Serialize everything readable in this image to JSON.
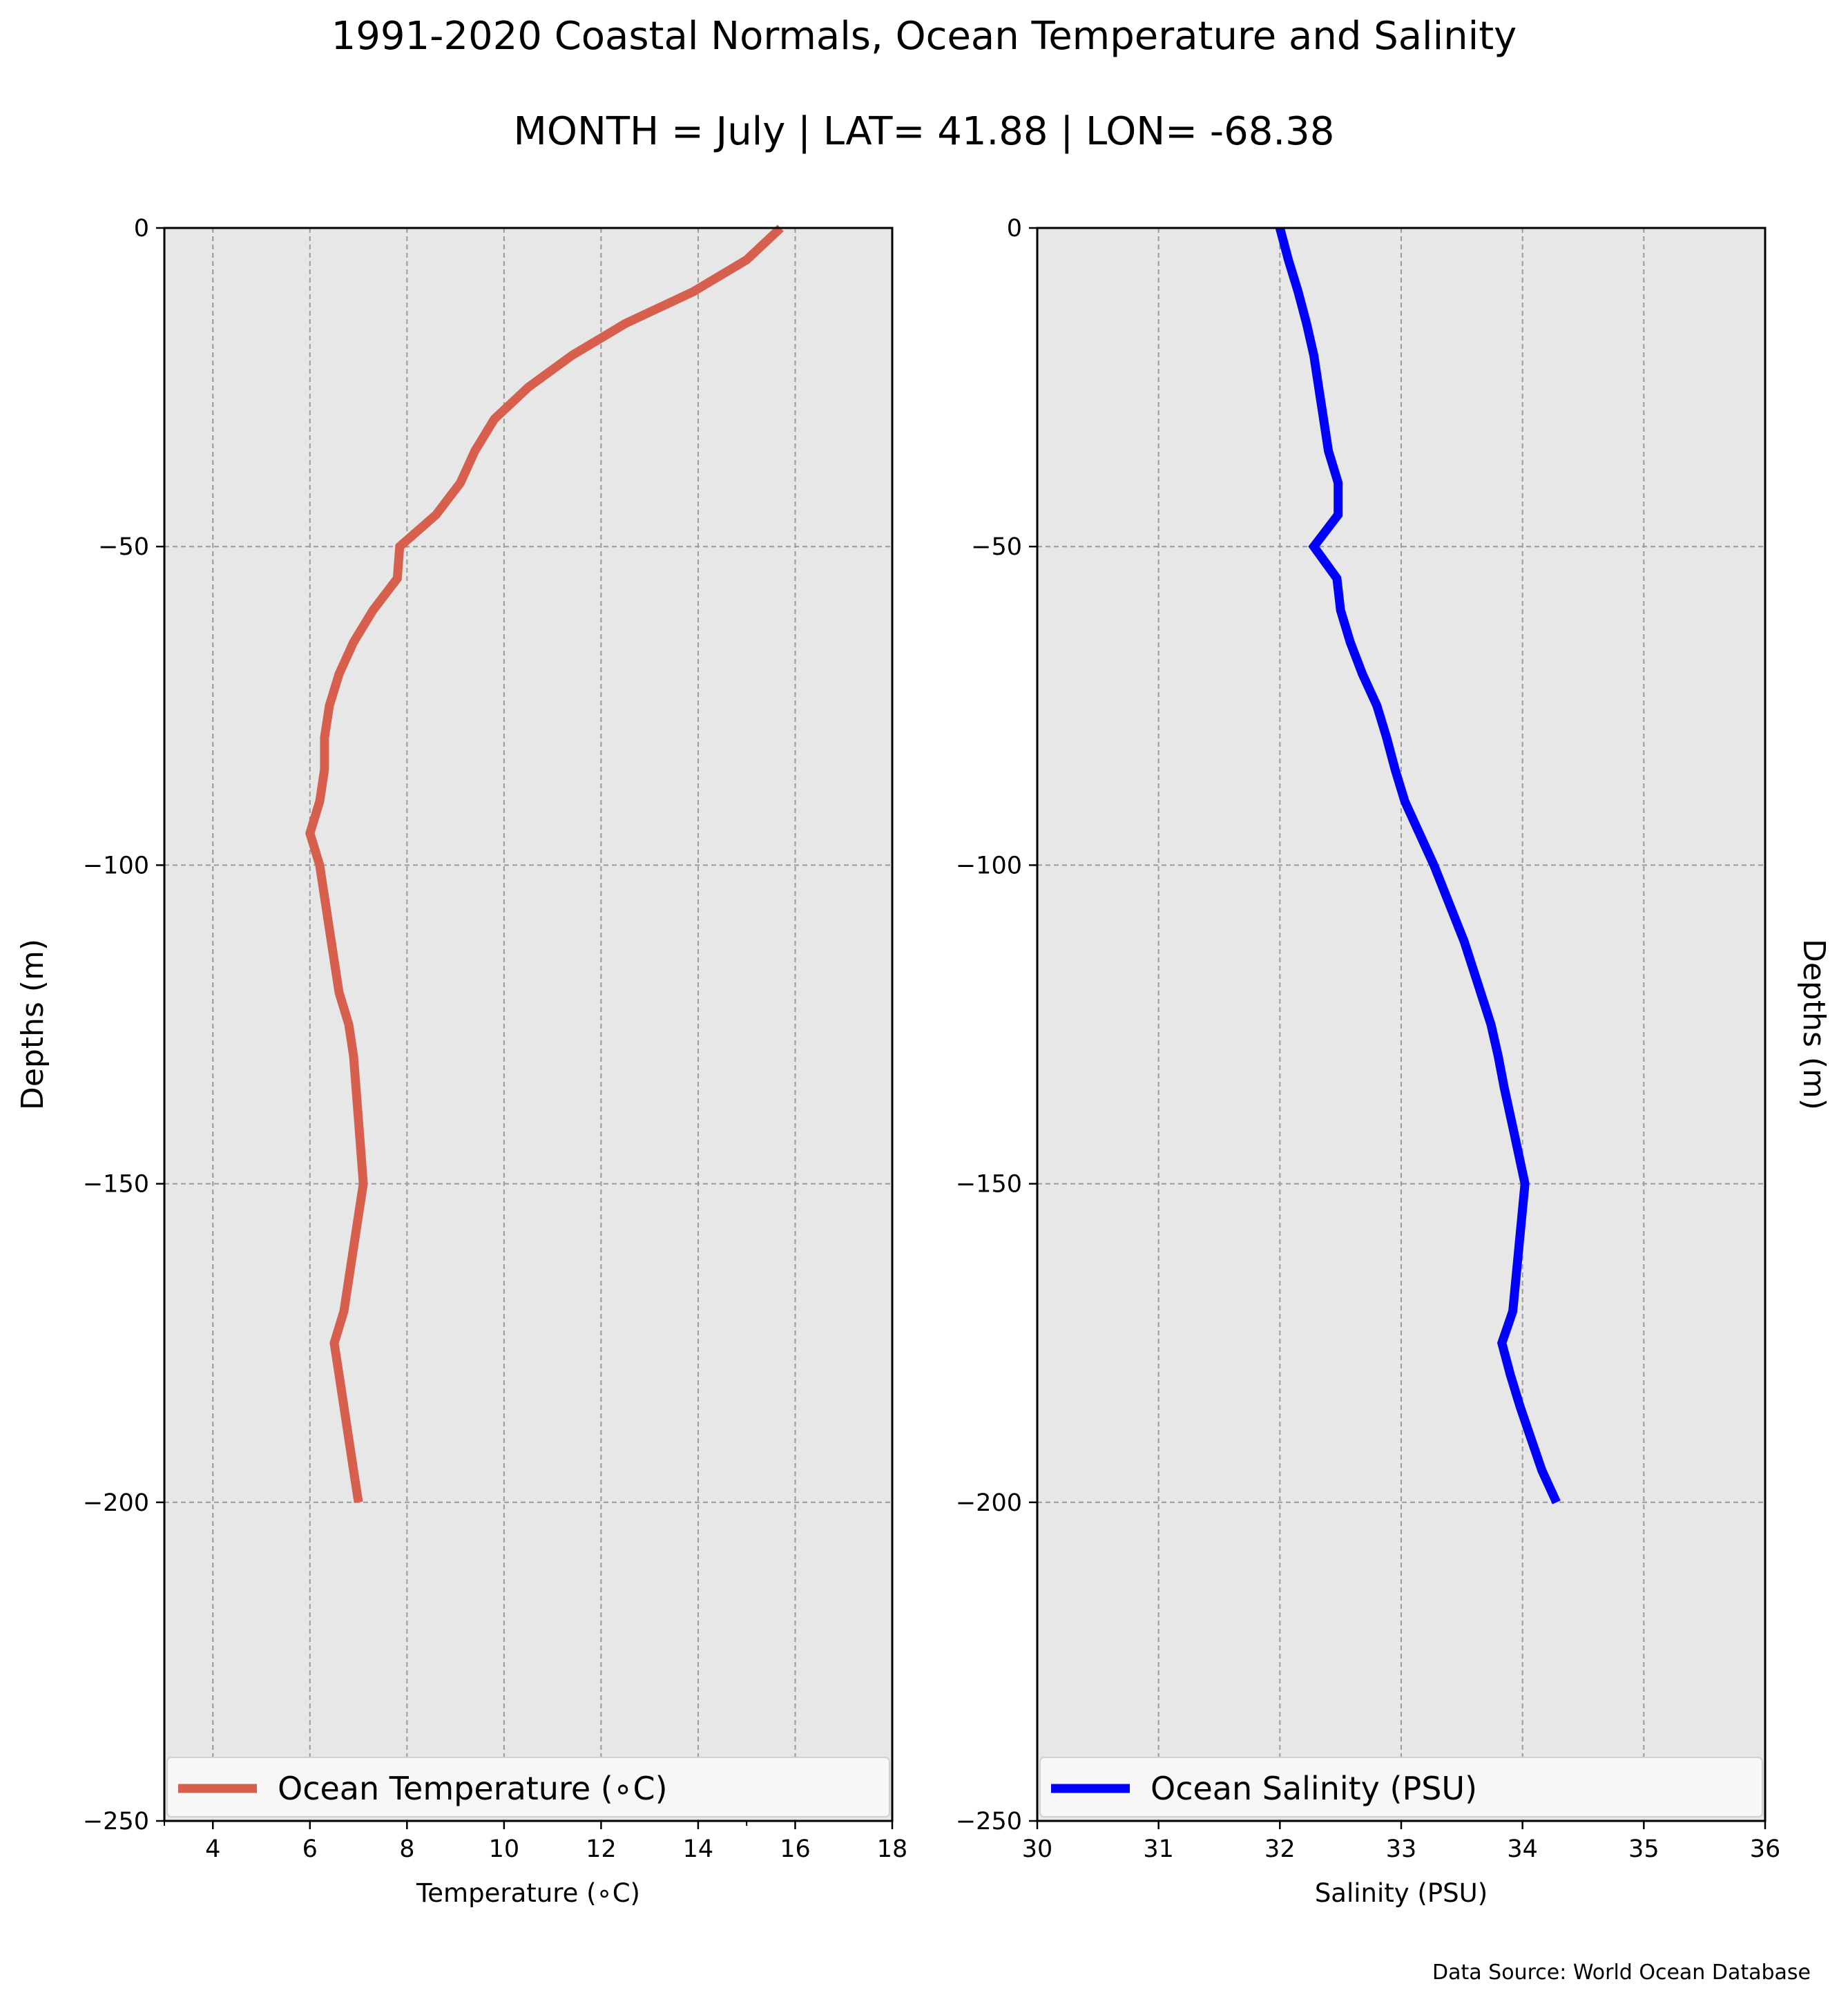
{
  "figure": {
    "title": "1991-2020 Coastal Normals, Ocean Temperature and Salinity",
    "subtitle": "MONTH = July | LAT= 41.88 | LON= -68.38",
    "source": "Data Source: World Ocean Database"
  },
  "chart_data": [
    {
      "type": "line",
      "xlabel": "Temperature (∘C)",
      "ylabel": "Depths (m)",
      "xlim": [
        3,
        18
      ],
      "ylim": [
        -250,
        0
      ],
      "xticks": [
        4,
        6,
        8,
        10,
        12,
        14,
        16,
        18
      ],
      "yticks": [
        0,
        -50,
        -100,
        -150,
        -200,
        -250
      ],
      "grid": true,
      "legend_position": "lower center",
      "series": [
        {
          "name": "Ocean Temperature (∘C)",
          "color": "#d65f4e",
          "x": [
            15.7,
            15.0,
            13.9,
            12.5,
            11.4,
            10.5,
            9.8,
            9.4,
            9.1,
            8.6,
            7.85,
            7.8,
            7.3,
            6.9,
            6.6,
            6.4,
            6.3,
            6.3,
            6.2,
            6.0,
            6.2,
            6.4,
            6.6,
            6.8,
            6.9,
            7.0,
            7.1,
            6.9,
            6.7,
            6.5,
            6.6,
            6.7,
            6.8,
            6.9,
            7.0
          ],
          "y": [
            0,
            -5,
            -10,
            -15,
            -20,
            -25,
            -30,
            -35,
            -40,
            -45,
            -50,
            -55,
            -60,
            -65,
            -70,
            -75,
            -80,
            -85,
            -90,
            -95,
            -100,
            -110,
            -120,
            -125,
            -130,
            -140,
            -150,
            -160,
            -170,
            -175,
            -180,
            -185,
            -190,
            -195,
            -200
          ]
        }
      ]
    },
    {
      "type": "line",
      "xlabel": "Salinity (PSU)",
      "ylabel": "Depths (m)",
      "xlim": [
        30,
        36
      ],
      "ylim": [
        -250,
        0
      ],
      "xticks": [
        30,
        31,
        32,
        33,
        34,
        35,
        36
      ],
      "yticks": [
        0,
        -50,
        -100,
        -150,
        -200,
        -250
      ],
      "grid": true,
      "legend_position": "lower center",
      "series": [
        {
          "name": "Ocean Salinity (PSU)",
          "color": "#0000ff",
          "x": [
            32.0,
            32.07,
            32.15,
            32.22,
            32.28,
            32.32,
            32.36,
            32.4,
            32.48,
            32.48,
            32.28,
            32.47,
            32.5,
            32.58,
            32.68,
            32.8,
            32.88,
            32.95,
            33.03,
            33.15,
            33.27,
            33.52,
            33.74,
            33.8,
            33.85,
            33.93,
            34.02,
            33.97,
            33.92,
            33.83,
            33.9,
            33.98,
            34.07,
            34.16,
            34.28
          ],
          "y": [
            0,
            -5,
            -10,
            -15,
            -20,
            -25,
            -30,
            -35,
            -40,
            -45,
            -50,
            -55,
            -60,
            -65,
            -70,
            -75,
            -80,
            -85,
            -90,
            -95,
            -100,
            -112,
            -125,
            -130,
            -135,
            -142,
            -150,
            -160,
            -170,
            -175,
            -180,
            -185,
            -190,
            -195,
            -200
          ]
        }
      ]
    }
  ]
}
